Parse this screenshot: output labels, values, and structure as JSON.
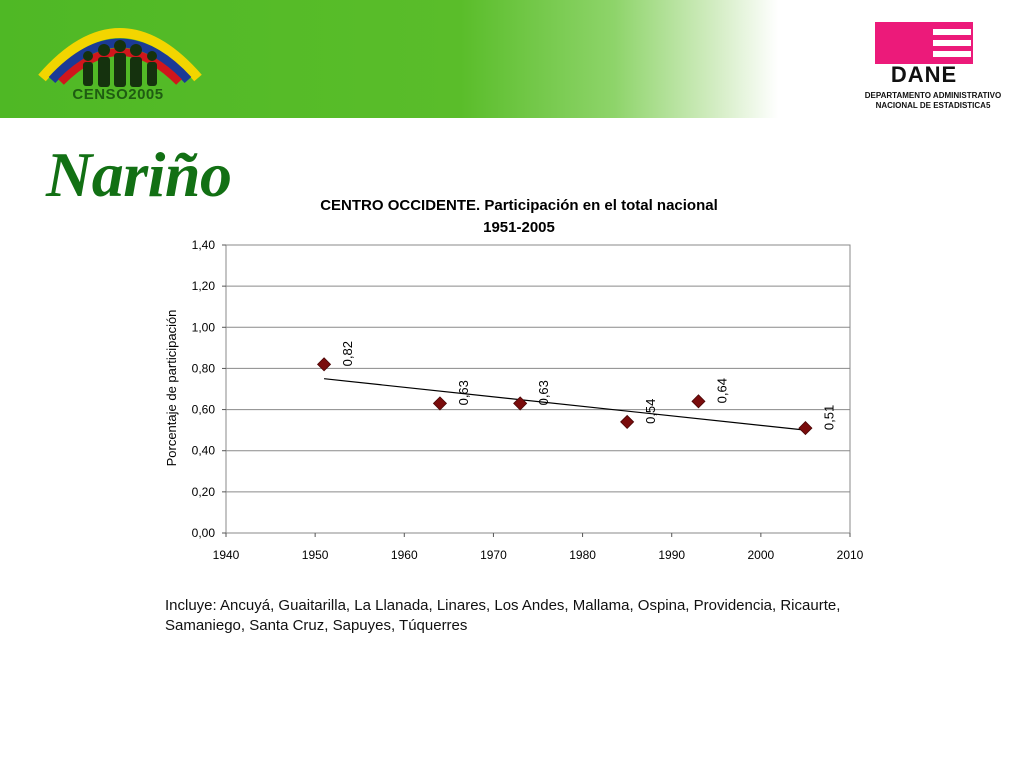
{
  "header": {
    "censo_label": "CENSO2005",
    "dane_label": "DANE",
    "dane_subtitle_line1": "DEPARTAMENTO ADMINISTRATIVO",
    "dane_subtitle_line2": "NACIONAL DE ESTADISTICA5",
    "colors": {
      "banner_green": "#5abd2a",
      "dane_pink": "#ec1a7a",
      "title_green": "#127014"
    }
  },
  "page_title": "Nariño",
  "chart_data": {
    "type": "scatter",
    "title_line1": "CENTRO OCCIDENTE. Participación en el total nacional",
    "title_line2": "1951-2005",
    "xlabel": "",
    "ylabel": "Porcentaje de participación",
    "xlim": [
      1940,
      2010
    ],
    "ylim": [
      0,
      1.4
    ],
    "x_ticks": [
      "1940",
      "1950",
      "1960",
      "1970",
      "1980",
      "1990",
      "2000",
      "2010"
    ],
    "y_ticks": [
      "0,00",
      "0,20",
      "0,40",
      "0,60",
      "0,80",
      "1,00",
      "1,20",
      "1,40"
    ],
    "grid": true,
    "marker_color": "#7a0c0c",
    "trendline": {
      "x": [
        1951,
        2005
      ],
      "y": [
        0.75,
        0.5
      ]
    },
    "points": [
      {
        "x": 1951,
        "y": 0.82,
        "label": "0,82"
      },
      {
        "x": 1964,
        "y": 0.63,
        "label": "0,63"
      },
      {
        "x": 1973,
        "y": 0.63,
        "label": "0,63"
      },
      {
        "x": 1985,
        "y": 0.54,
        "label": "0,54"
      },
      {
        "x": 1993,
        "y": 0.64,
        "label": "0,64"
      },
      {
        "x": 2005,
        "y": 0.51,
        "label": "0,51"
      }
    ]
  },
  "footnote": "Incluye: Ancuyá, Guaitarilla, La Llanada, Linares, Los Andes, Mallama, Ospina, Providencia, Ricaurte, Samaniego, Santa Cruz, Sapuyes, Túquerres"
}
